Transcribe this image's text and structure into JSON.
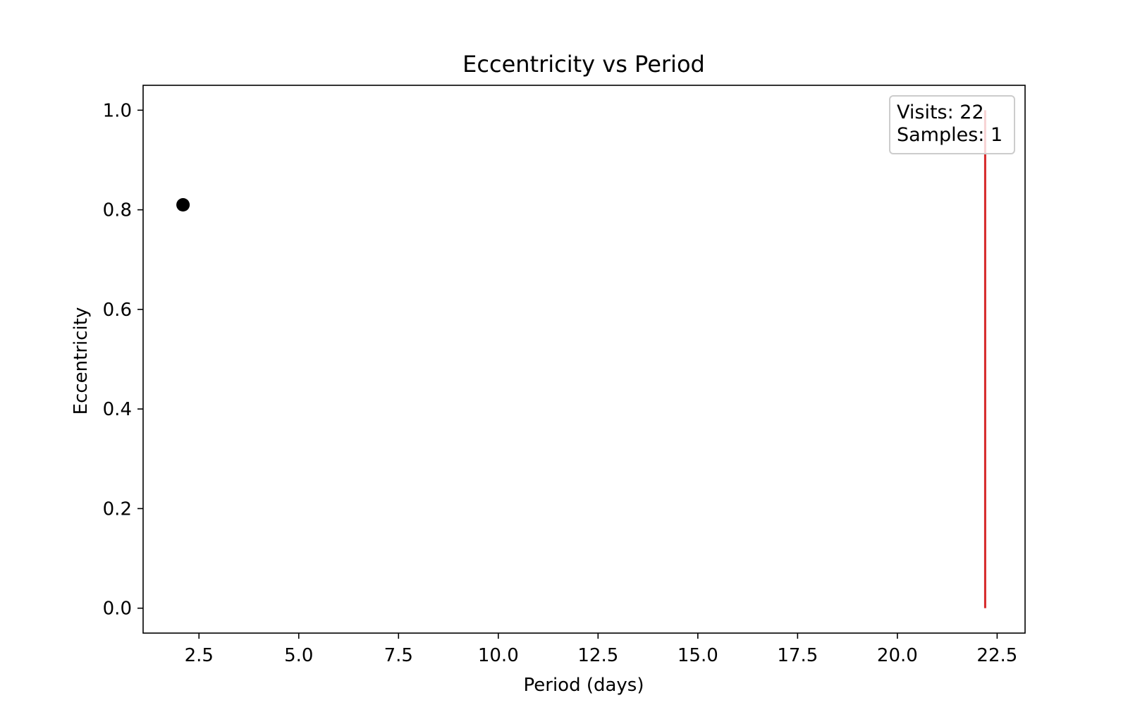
{
  "chart_data": {
    "type": "scatter",
    "title": "Eccentricity vs Period",
    "xlabel": "Period (days)",
    "ylabel": "Eccentricity",
    "xlim": [
      1.1,
      23.2
    ],
    "ylim": [
      -0.05,
      1.05
    ],
    "xticks": [
      2.5,
      5.0,
      7.5,
      10.0,
      12.5,
      15.0,
      17.5,
      20.0,
      22.5
    ],
    "xtick_labels": [
      "2.5",
      "5.0",
      "7.5",
      "10.0",
      "12.5",
      "15.0",
      "17.5",
      "20.0",
      "22.5"
    ],
    "yticks": [
      0.0,
      0.2,
      0.4,
      0.6,
      0.8,
      1.0
    ],
    "ytick_labels": [
      "0.0",
      "0.2",
      "0.4",
      "0.6",
      "0.8",
      "1.0"
    ],
    "grid": false,
    "points": [
      {
        "x": 2.1,
        "y": 0.81,
        "color": "#000000"
      }
    ],
    "vertical_lines": [
      {
        "x": 22.2,
        "y_from": 0.0,
        "y_to": 1.0,
        "color": "#d62728"
      }
    ],
    "legend": {
      "placement": "top-right",
      "lines": [
        "Visits: 22",
        "Samples: 1"
      ]
    }
  }
}
